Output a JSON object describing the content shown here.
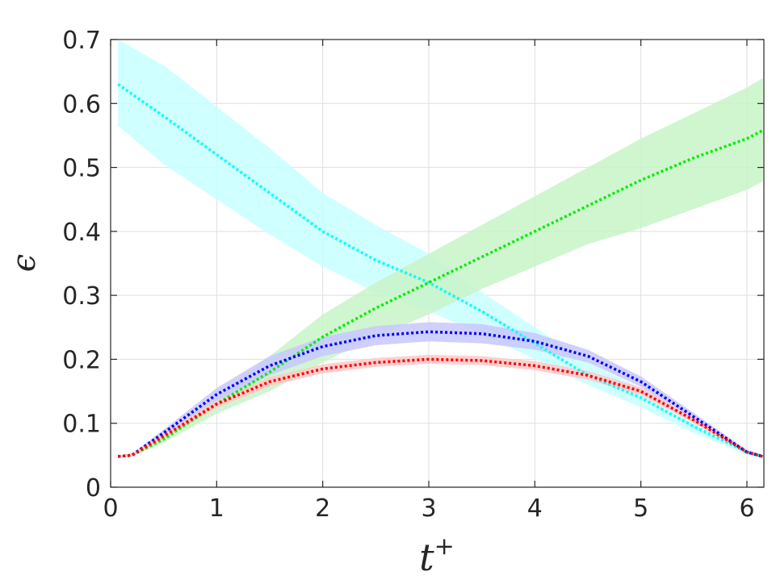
{
  "chart_data": {
    "type": "line",
    "xlabel": "t",
    "xlabel_sup": "+",
    "ylabel": "ϵ",
    "xlim": [
      0,
      6.16
    ],
    "ylim": [
      0,
      0.7
    ],
    "x_ticks": [
      0,
      1,
      2,
      3,
      4,
      5,
      6
    ],
    "y_ticks": [
      0,
      0.1,
      0.2,
      0.3,
      0.4,
      0.5,
      0.6,
      0.7
    ],
    "x_tick_labels": [
      "0",
      "1",
      "2",
      "3",
      "4",
      "5",
      "6"
    ],
    "y_tick_labels": [
      "0",
      "0.1",
      "0.2",
      "0.3",
      "0.4",
      "0.5",
      "0.6",
      "0.7"
    ],
    "grid": true,
    "line_style": "dotted",
    "series": [
      {
        "color": "#00ffff",
        "band_color": "#c8ffff",
        "x": [
          0.07,
          0.5,
          1.0,
          1.5,
          2.0,
          2.5,
          3.0,
          3.5,
          4.0,
          4.5,
          5.0,
          5.5,
          6.0,
          6.15
        ],
        "mean": [
          0.63,
          0.58,
          0.52,
          0.46,
          0.4,
          0.355,
          0.32,
          0.275,
          0.225,
          0.175,
          0.14,
          0.095,
          0.055,
          0.048
        ],
        "lower": [
          0.565,
          0.505,
          0.45,
          0.395,
          0.345,
          0.305,
          0.275,
          0.24,
          0.2,
          0.16,
          0.125,
          0.085,
          0.05,
          0.045
        ],
        "upper": [
          0.7,
          0.66,
          0.595,
          0.53,
          0.46,
          0.41,
          0.365,
          0.305,
          0.25,
          0.195,
          0.155,
          0.105,
          0.06,
          0.05
        ]
      },
      {
        "color": "#00ee00",
        "band_color": "#c8f5c8",
        "x": [
          0.07,
          0.2,
          0.5,
          1.0,
          1.5,
          2.0,
          2.5,
          3.0,
          3.5,
          4.0,
          4.5,
          5.0,
          5.5,
          6.0,
          6.15
        ],
        "mean": [
          0.048,
          0.05,
          0.075,
          0.13,
          0.18,
          0.235,
          0.28,
          0.32,
          0.36,
          0.4,
          0.44,
          0.48,
          0.515,
          0.545,
          0.558
        ],
        "lower": [
          0.046,
          0.048,
          0.07,
          0.115,
          0.15,
          0.195,
          0.235,
          0.27,
          0.31,
          0.345,
          0.38,
          0.405,
          0.435,
          0.465,
          0.478
        ],
        "upper": [
          0.05,
          0.053,
          0.08,
          0.14,
          0.205,
          0.27,
          0.32,
          0.365,
          0.41,
          0.455,
          0.5,
          0.545,
          0.585,
          0.625,
          0.64
        ]
      },
      {
        "color": "#0000ff",
        "band_color": "#c8c8ff",
        "x": [
          0.07,
          0.2,
          0.5,
          1.0,
          1.5,
          2.0,
          2.5,
          3.0,
          3.5,
          4.0,
          4.5,
          5.0,
          5.5,
          6.0,
          6.15
        ],
        "mean": [
          0.048,
          0.05,
          0.085,
          0.145,
          0.19,
          0.22,
          0.237,
          0.243,
          0.24,
          0.228,
          0.205,
          0.165,
          0.11,
          0.055,
          0.048
        ],
        "lower": [
          0.046,
          0.048,
          0.08,
          0.135,
          0.175,
          0.205,
          0.222,
          0.228,
          0.225,
          0.215,
          0.195,
          0.157,
          0.104,
          0.052,
          0.046
        ],
        "upper": [
          0.05,
          0.052,
          0.09,
          0.155,
          0.205,
          0.235,
          0.252,
          0.258,
          0.255,
          0.241,
          0.215,
          0.173,
          0.116,
          0.058,
          0.05
        ]
      },
      {
        "color": "#ff0000",
        "band_color": "#ffc8c8",
        "x": [
          0.07,
          0.2,
          0.5,
          1.0,
          1.5,
          2.0,
          2.5,
          3.0,
          3.5,
          4.0,
          4.5,
          5.0,
          5.5,
          6.0,
          6.15
        ],
        "mean": [
          0.048,
          0.05,
          0.08,
          0.13,
          0.165,
          0.185,
          0.195,
          0.2,
          0.198,
          0.19,
          0.175,
          0.15,
          0.105,
          0.055,
          0.048
        ],
        "lower": [
          0.046,
          0.048,
          0.076,
          0.124,
          0.158,
          0.178,
          0.188,
          0.193,
          0.191,
          0.183,
          0.168,
          0.144,
          0.1,
          0.052,
          0.046
        ],
        "upper": [
          0.05,
          0.052,
          0.084,
          0.136,
          0.172,
          0.192,
          0.202,
          0.207,
          0.205,
          0.197,
          0.182,
          0.156,
          0.11,
          0.058,
          0.05
        ]
      }
    ]
  }
}
